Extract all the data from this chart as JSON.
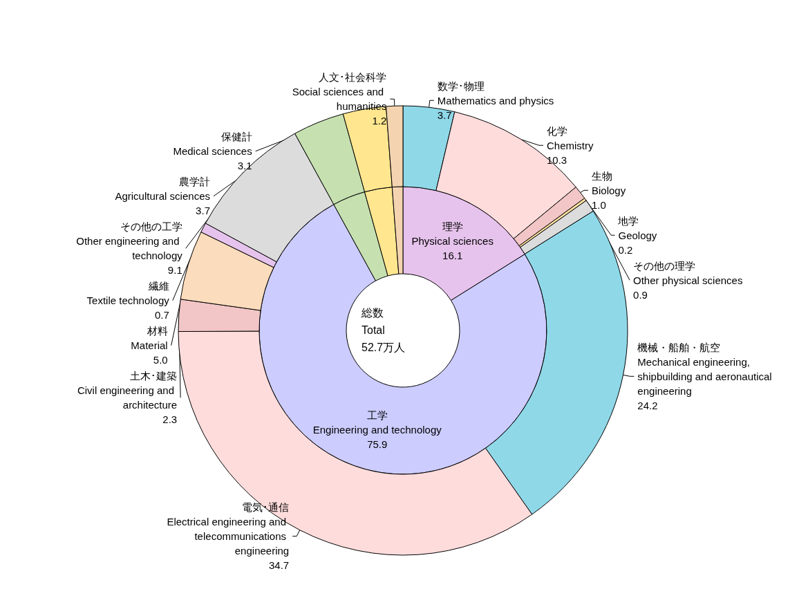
{
  "chart_data": [
    {
      "type": "donut",
      "annotations": [
        "総数\nTotal\n52.7万人"
      ],
      "categories": [
        "理学\nPhysical sciences",
        "工学\nEngineering and technology",
        null,
        null,
        null
      ],
      "values": [
        16.1,
        75.9,
        3.7,
        3.1,
        1.2
      ],
      "value_labels": [
        "16.1",
        "75.9",
        null,
        null,
        null
      ],
      "colors": [
        "#e6c3ec",
        "#ccccff",
        "#c6e0b0",
        "#ffe68f",
        "#f4d4b0"
      ]
    },
    {
      "type": "donut",
      "categories": [
        "数学･物理\nMathematics and physics",
        "化学\nChemistry",
        "生物\nBiology",
        "地学\nGeology",
        "その他の理学\nOther physical sciences",
        "機械・船舶・航空\nMechanical engineering, shipbuilding and aeronautical engineering",
        "電気･通信\nElectrical engineering and telecommunications engineering",
        "土木･建築\nCivil engineering and architecture",
        "材料\nMaterial",
        "繊維\nTextile technology",
        "その他の工学\nOther engineering and technology",
        "農学計\nAgricultural sciences",
        "保健計\nMedical sciences",
        "人文･社会科学\nSocial sciences and humanities"
      ],
      "values": [
        3.7,
        10.3,
        1.0,
        0.2,
        0.9,
        24.2,
        34.7,
        2.3,
        5.0,
        0.7,
        9.1,
        3.7,
        3.1,
        1.2
      ],
      "value_labels": [
        "3.7",
        "10.3",
        "1.0",
        "0.2",
        "0.9",
        "24.2",
        "34.7",
        "2.3",
        "5.0",
        "0.7",
        "9.1",
        "3.7",
        "3.1",
        "1.2"
      ],
      "colors": [
        "#8fd8e8",
        "#ffdcdc",
        "#f2c6c6",
        "#ffe0a0",
        "#dcdcdc",
        "#8fd8e8",
        "#ffdcdc",
        "#f2c6c6",
        "#fbdcbc",
        "#e6c3ec",
        "#dcdcdc",
        "#c6e0b0",
        "#ffe68f",
        "#f4d4b0"
      ]
    }
  ]
}
